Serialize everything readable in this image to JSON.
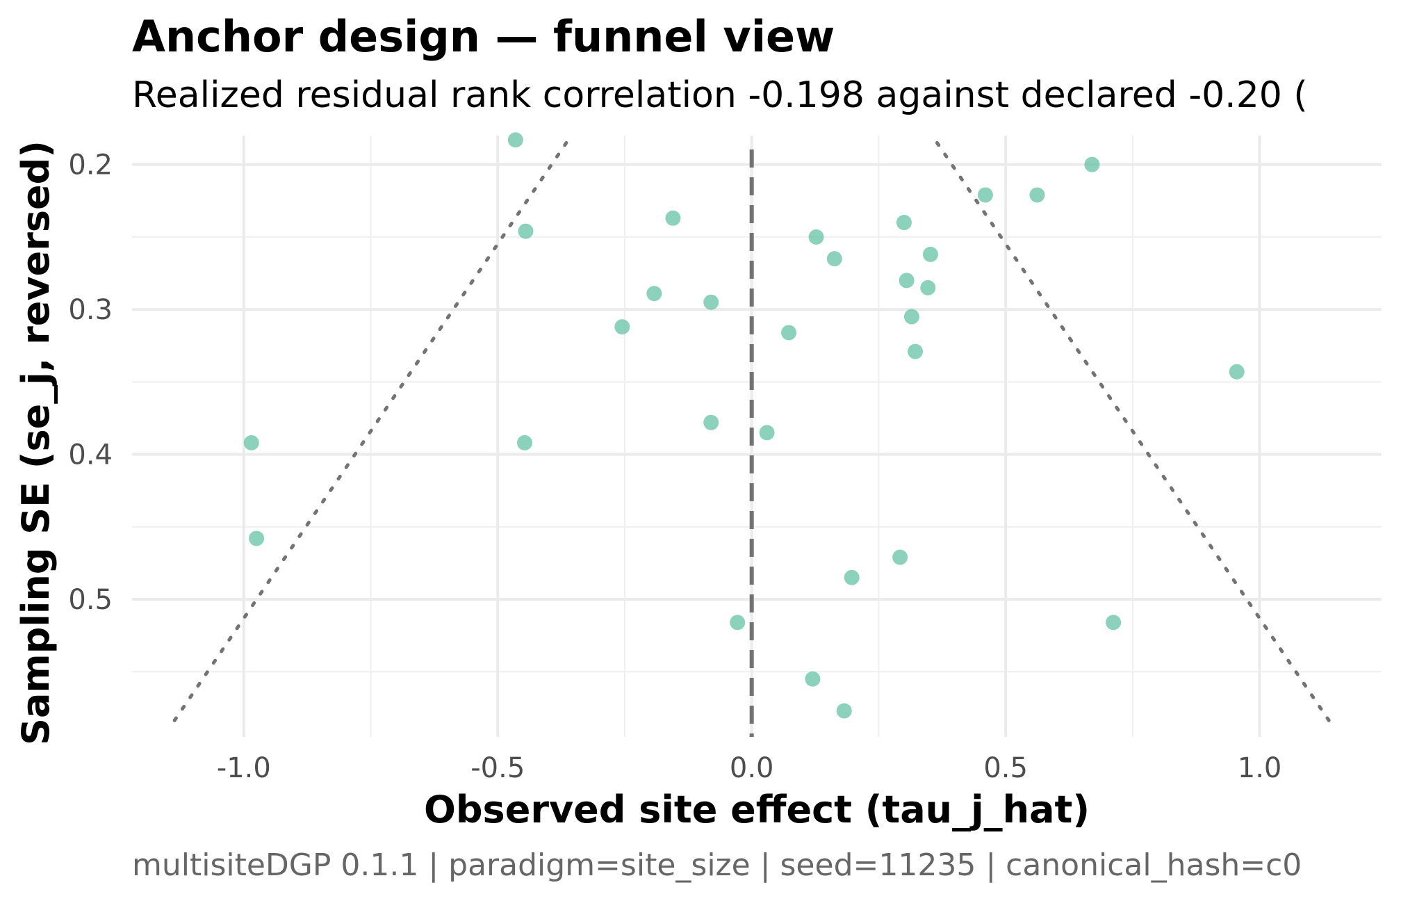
{
  "chart_data": {
    "type": "scatter",
    "title": "Anchor design — funnel view",
    "subtitle": "Realized residual rank correlation -0.198 against declared -0.20 (",
    "xlabel": "Observed site effect (tau_j_hat)",
    "ylabel": "Sampling SE (se_j, reversed)",
    "caption": "multisiteDGP 0.1.1 | paradigm=site_size | seed=11235 | canonical_hash=c0",
    "xlim": [
      -1.22,
      1.24
    ],
    "ylim": [
      0.18,
      0.595
    ],
    "y_reversed": true,
    "grid": true,
    "x_ticks": [
      {
        "value": -1.0,
        "label": "-1.0"
      },
      {
        "value": -0.5,
        "label": "-0.5"
      },
      {
        "value": 0.0,
        "label": "0.0"
      },
      {
        "value": 0.5,
        "label": "0.5"
      },
      {
        "value": 1.0,
        "label": "1.0"
      }
    ],
    "y_ticks": [
      {
        "value": 0.2,
        "label": "0.2"
      },
      {
        "value": 0.3,
        "label": "0.3"
      },
      {
        "value": 0.4,
        "label": "0.4"
      },
      {
        "value": 0.5,
        "label": "0.5"
      }
    ],
    "reference_line": {
      "x": 0.0,
      "style": "dashed",
      "color": "#737373"
    },
    "funnel_bounds": {
      "style": "dotted",
      "color": "#737373",
      "left": [
        {
          "x": -0.365,
          "y": 0.185
        },
        {
          "x": -1.14,
          "y": 0.5855
        }
      ],
      "right": [
        {
          "x": 0.365,
          "y": 0.185
        },
        {
          "x": 1.14,
          "y": 0.5855
        }
      ]
    },
    "point_color": "#66c2a5",
    "points": [
      {
        "x": -0.465,
        "y": 0.183
      },
      {
        "x": 0.67,
        "y": 0.2
      },
      {
        "x": 0.46,
        "y": 0.221
      },
      {
        "x": 0.562,
        "y": 0.221
      },
      {
        "x": -0.155,
        "y": 0.237
      },
      {
        "x": 0.3,
        "y": 0.24
      },
      {
        "x": -0.445,
        "y": 0.246
      },
      {
        "x": 0.127,
        "y": 0.25
      },
      {
        "x": 0.352,
        "y": 0.262
      },
      {
        "x": 0.163,
        "y": 0.265
      },
      {
        "x": 0.305,
        "y": 0.28
      },
      {
        "x": 0.347,
        "y": 0.285
      },
      {
        "x": -0.192,
        "y": 0.289
      },
      {
        "x": -0.08,
        "y": 0.295
      },
      {
        "x": 0.315,
        "y": 0.305
      },
      {
        "x": -0.255,
        "y": 0.312
      },
      {
        "x": 0.073,
        "y": 0.316
      },
      {
        "x": 0.322,
        "y": 0.329
      },
      {
        "x": 0.955,
        "y": 0.343
      },
      {
        "x": -0.08,
        "y": 0.378
      },
      {
        "x": 0.03,
        "y": 0.385
      },
      {
        "x": -0.985,
        "y": 0.392
      },
      {
        "x": -0.447,
        "y": 0.392
      },
      {
        "x": -0.975,
        "y": 0.458
      },
      {
        "x": 0.292,
        "y": 0.471
      },
      {
        "x": 0.197,
        "y": 0.485
      },
      {
        "x": -0.028,
        "y": 0.516
      },
      {
        "x": 0.712,
        "y": 0.516
      },
      {
        "x": 0.12,
        "y": 0.555
      },
      {
        "x": 0.182,
        "y": 0.577
      }
    ]
  }
}
